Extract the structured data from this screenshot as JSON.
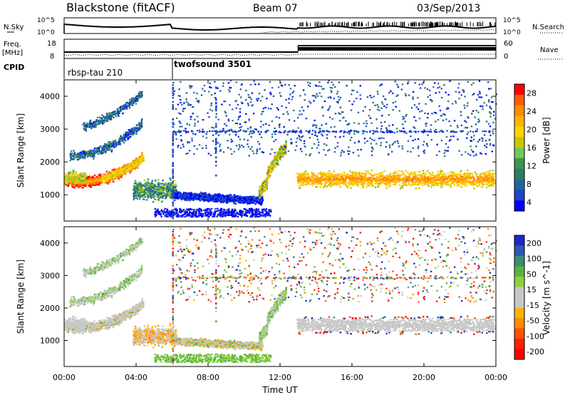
{
  "header": {
    "site": "Blackstone (fitACF)",
    "beam": "Beam 07",
    "date": "03/Sep/2013"
  },
  "panels": {
    "nsky_label": "N.Sky",
    "nsearch_label": "N.Search",
    "nsky_ticks": [
      "10^5",
      "10^0"
    ],
    "nsearch_ticks": [
      "10^5",
      "10^0"
    ],
    "freq_label_line1": "Freq.",
    "freq_label_line2": "[MHz]",
    "freq_ticks": [
      "18",
      "8"
    ],
    "nave_label": "Nave",
    "nave_ticks": [
      "60",
      "0"
    ],
    "cpid_label": "CPID",
    "cpid_segments": [
      {
        "name": "rbsp-tau 210",
        "start_hour": 0
      },
      {
        "name": "twofsound 3501",
        "start_hour": 6
      }
    ]
  },
  "colorbars": {
    "power": {
      "label": "Power [dB]",
      "ticks": [
        "28",
        "24",
        "20",
        "16",
        "12",
        "8",
        "4"
      ],
      "colors": [
        "#ff0000",
        "#ff5a00",
        "#ff8c00",
        "#ffb400",
        "#ffd200",
        "#c8c800",
        "#78c850",
        "#3c9650",
        "#2d7d64",
        "#2364a0",
        "#1e46c8",
        "#0000ff"
      ]
    },
    "velocity": {
      "label": "Velocity [m s^-1]",
      "ticks": [
        "200",
        "100",
        "50",
        "15",
        "-15",
        "-50",
        "-100",
        "-200"
      ],
      "colors": [
        "#1e28c8",
        "#2d5ab4",
        "#3c8c78",
        "#5ab43c",
        "#8cd23c",
        "#c8c8c8",
        "#c8c8c8",
        "#ffb400",
        "#ff8c00",
        "#ff5000",
        "#ff1e00",
        "#ff0000"
      ]
    }
  },
  "chart_data": [
    {
      "type": "heatmap",
      "title": "Power",
      "ylabel": "Slant Range [km]",
      "yticks": [
        "1000",
        "2000",
        "3000",
        "4000"
      ],
      "ylim": [
        200,
        4500
      ],
      "xlim": [
        0,
        24
      ],
      "colorbar": "Power [dB]"
    },
    {
      "type": "heatmap",
      "title": "Velocity",
      "ylabel": "Slant Range [km]",
      "yticks": [
        "1000",
        "2000",
        "3000",
        "4000"
      ],
      "ylim": [
        200,
        4500
      ],
      "xlim": [
        0,
        24
      ],
      "colorbar": "Velocity [m s^-1]"
    }
  ],
  "xaxis": {
    "label": "Time UT",
    "ticks": [
      "00:00",
      "04:00",
      "08:00",
      "12:00",
      "16:00",
      "20:00",
      "00:00"
    ]
  }
}
